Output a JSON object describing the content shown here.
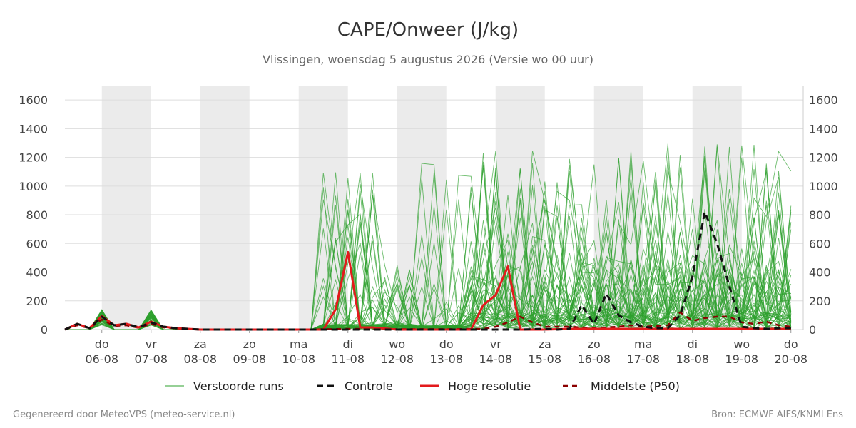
{
  "title": "CAPE/Onweer (J/kg)",
  "subtitle": "Vlissingen, woensdag  5 augustus 2026 (Versie wo 00 uur)",
  "footer_left": "Gegenereerd door MeteoVPS (meteo-service.nl)",
  "footer_right": "Bron: ECMWF AIFS/KNMI Ens",
  "colors": {
    "members": "#2ca02c",
    "control": "#111111",
    "high_res": "#e31a1c",
    "median": "#8b0000",
    "weekend_band": "#ebebeb",
    "grid": "#dddddd"
  },
  "chart_data": {
    "type": "line",
    "title": "CAPE/Onweer (J/kg)",
    "xlabel": "",
    "ylabel": "",
    "ylim": [
      0,
      1700
    ],
    "yticks": [
      0,
      200,
      400,
      600,
      800,
      1000,
      1200,
      1400,
      1600
    ],
    "ytick_labels": [
      "0",
      "200",
      "400",
      "600",
      "800",
      "1000",
      "1200",
      "1400",
      "1600"
    ],
    "x_unit": "days after 05-08-2026 00:00",
    "xlim": [
      0.25,
      15
    ],
    "x_ticks": [
      {
        "day": "do",
        "date": "06-08"
      },
      {
        "day": "vr",
        "date": "07-08"
      },
      {
        "day": "za",
        "date": "08-08"
      },
      {
        "day": "zo",
        "date": "09-08"
      },
      {
        "day": "ma",
        "date": "10-08"
      },
      {
        "day": "di",
        "date": "11-08"
      },
      {
        "day": "wo",
        "date": "12-08"
      },
      {
        "day": "do",
        "date": "13-08"
      },
      {
        "day": "vr",
        "date": "14-08"
      },
      {
        "day": "za",
        "date": "15-08"
      },
      {
        "day": "zo",
        "date": "16-08"
      },
      {
        "day": "ma",
        "date": "17-08"
      },
      {
        "day": "di",
        "date": "18-08"
      },
      {
        "day": "wo",
        "date": "19-08"
      },
      {
        "day": "do",
        "date": "20-08"
      }
    ],
    "shaded_bands": [
      [
        1,
        2
      ],
      [
        3,
        4
      ],
      [
        5,
        6
      ],
      [
        7,
        8
      ],
      [
        9,
        10
      ],
      [
        11,
        12
      ],
      [
        13,
        14
      ]
    ],
    "grid": true,
    "legend_position": "bottom",
    "legend": [
      "Verstoorde runs",
      "Controle",
      "Hoge resolutie",
      "Middelste (P50)"
    ],
    "series": [
      {
        "name": "Controle",
        "style": "dashed",
        "color": "#111111",
        "points": [
          [
            0.25,
            0
          ],
          [
            0.5,
            40
          ],
          [
            0.75,
            10
          ],
          [
            1.0,
            90
          ],
          [
            1.25,
            30
          ],
          [
            1.5,
            40
          ],
          [
            1.75,
            15
          ],
          [
            2.0,
            50
          ],
          [
            2.25,
            20
          ],
          [
            2.5,
            10
          ],
          [
            2.75,
            5
          ],
          [
            3.0,
            0
          ],
          [
            4.0,
            0
          ],
          [
            5.0,
            0
          ],
          [
            6.0,
            0
          ],
          [
            7.0,
            0
          ],
          [
            8.0,
            0
          ],
          [
            9.0,
            0
          ],
          [
            9.5,
            0
          ],
          [
            10.0,
            5
          ],
          [
            10.25,
            0
          ],
          [
            10.5,
            5
          ],
          [
            10.75,
            170
          ],
          [
            11.0,
            40
          ],
          [
            11.25,
            250
          ],
          [
            11.5,
            100
          ],
          [
            11.75,
            50
          ],
          [
            12.0,
            20
          ],
          [
            12.25,
            10
          ],
          [
            12.5,
            10
          ],
          [
            12.75,
            100
          ],
          [
            13.0,
            370
          ],
          [
            13.25,
            820
          ],
          [
            13.5,
            600
          ],
          [
            13.75,
            300
          ],
          [
            14.0,
            20
          ],
          [
            14.25,
            10
          ],
          [
            14.5,
            5
          ],
          [
            14.75,
            10
          ],
          [
            15.0,
            10
          ]
        ]
      },
      {
        "name": "Hoge resolutie",
        "style": "solid",
        "color": "#e31a1c",
        "points": [
          [
            0.25,
            0
          ],
          [
            0.5,
            40
          ],
          [
            0.75,
            10
          ],
          [
            1.0,
            95
          ],
          [
            1.25,
            30
          ],
          [
            1.5,
            40
          ],
          [
            1.75,
            15
          ],
          [
            2.0,
            55
          ],
          [
            2.25,
            20
          ],
          [
            2.5,
            10
          ],
          [
            2.75,
            5
          ],
          [
            3.0,
            0
          ],
          [
            4.0,
            0
          ],
          [
            5.0,
            0
          ],
          [
            5.5,
            0
          ],
          [
            5.75,
            140
          ],
          [
            6.0,
            540
          ],
          [
            6.25,
            15
          ],
          [
            6.5,
            15
          ],
          [
            7.0,
            0
          ],
          [
            8.0,
            0
          ],
          [
            8.5,
            0
          ],
          [
            8.75,
            170
          ],
          [
            9.0,
            240
          ],
          [
            9.25,
            440
          ],
          [
            9.5,
            0
          ],
          [
            10.0,
            0
          ],
          [
            10.5,
            5
          ],
          [
            11.0,
            5
          ],
          [
            12.0,
            5
          ],
          [
            13.0,
            5
          ],
          [
            14.0,
            5
          ],
          [
            15.0,
            5
          ]
        ]
      },
      {
        "name": "Middelste (P50)",
        "style": "dashed",
        "color": "#8b0000",
        "points": [
          [
            0.25,
            0
          ],
          [
            0.5,
            30
          ],
          [
            0.75,
            10
          ],
          [
            1.0,
            70
          ],
          [
            1.25,
            25
          ],
          [
            1.5,
            30
          ],
          [
            1.75,
            12
          ],
          [
            2.0,
            40
          ],
          [
            2.25,
            15
          ],
          [
            2.5,
            8
          ],
          [
            2.75,
            3
          ],
          [
            3.0,
            0
          ],
          [
            4.0,
            0
          ],
          [
            5.0,
            0
          ],
          [
            6.0,
            5
          ],
          [
            7.0,
            3
          ],
          [
            8.0,
            3
          ],
          [
            8.75,
            5
          ],
          [
            9.0,
            20
          ],
          [
            9.25,
            50
          ],
          [
            9.5,
            90
          ],
          [
            9.75,
            50
          ],
          [
            10.0,
            20
          ],
          [
            10.5,
            20
          ],
          [
            11.0,
            10
          ],
          [
            11.5,
            20
          ],
          [
            11.75,
            30
          ],
          [
            12.0,
            20
          ],
          [
            12.5,
            30
          ],
          [
            12.75,
            120
          ],
          [
            13.0,
            60
          ],
          [
            13.25,
            80
          ],
          [
            13.5,
            90
          ],
          [
            13.75,
            90
          ],
          [
            14.0,
            50
          ],
          [
            14.25,
            40
          ],
          [
            14.5,
            55
          ],
          [
            14.75,
            30
          ],
          [
            15.0,
            20
          ]
        ]
      }
    ],
    "member_count": 50
  }
}
